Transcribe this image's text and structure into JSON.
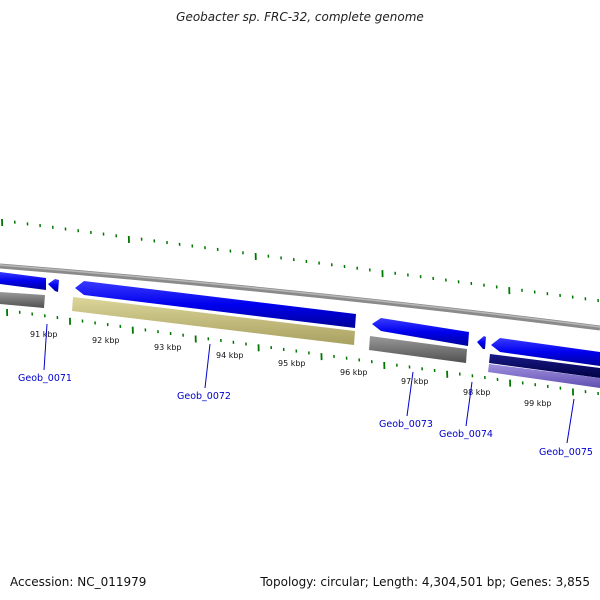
{
  "title": "Geobacter sp. FRC-32, complete genome",
  "footer": {
    "accession": "Accession: NC_011979",
    "summary": "Topology: circular; Length: 4,304,501 bp; Genes: 3,855"
  },
  "scale_ticks": [
    "91 kbp",
    "92 kbp",
    "93 kbp",
    "94 kbp",
    "95 kbp",
    "96 kbp",
    "97 kbp",
    "98 kbp",
    "99 kbp"
  ],
  "gene_labels": [
    "Geob_0071",
    "Geob_0072",
    "Geob_0073",
    "Geob_0074",
    "Geob_0075"
  ],
  "colors": {
    "cds": "#0000ee",
    "gene_gray": "#707070",
    "gene_tan": "#c8c080",
    "gene_navy": "#000066",
    "gene_purple": "#7a66cc",
    "backbone": "#888888",
    "ticks": "#007700",
    "label": "#0000cc"
  }
}
